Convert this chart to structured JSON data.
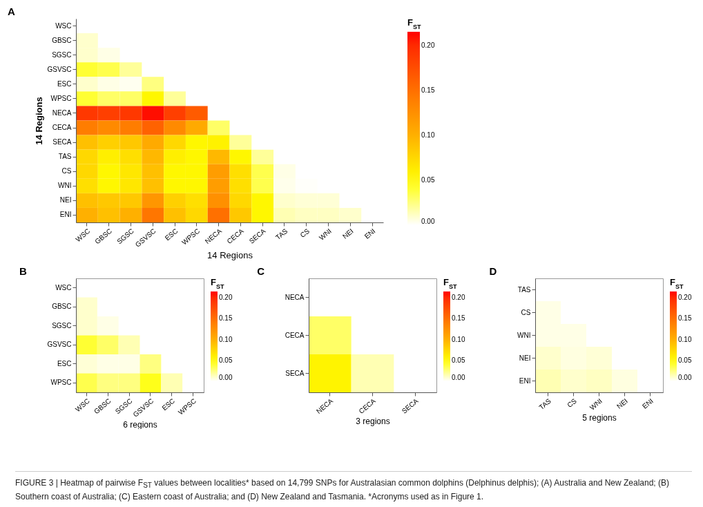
{
  "chart_data": [
    {
      "type": "heatmap",
      "title": "A",
      "xlabel": "14 Regions",
      "ylabel": "14 Regions",
      "clabel": "F$_{ST}$",
      "categories": [
        "WSC",
        "GBSC",
        "SGSC",
        "GSVSC",
        "ESC",
        "WPSC",
        "NECA",
        "CECA",
        "SECA",
        "TAS",
        "CS",
        "WNI",
        "NEI",
        "ENI"
      ],
      "y_categories": [
        "WSC",
        "GBSC",
        "SGSC",
        "GSVSC",
        "ESC",
        "WPSC",
        "NECA",
        "CECA",
        "SECA",
        "TAS",
        "CS",
        "WNI",
        "NEI",
        "ENI"
      ],
      "cells": [
        [
          null,
          null,
          null,
          null,
          null,
          null,
          null,
          null,
          null,
          null,
          null,
          null,
          null,
          null
        ],
        [
          0.01,
          null,
          null,
          null,
          null,
          null,
          null,
          null,
          null,
          null,
          null,
          null,
          null,
          null
        ],
        [
          0.01,
          0.005,
          null,
          null,
          null,
          null,
          null,
          null,
          null,
          null,
          null,
          null,
          null,
          null
        ],
        [
          0.04,
          0.035,
          0.02,
          null,
          null,
          null,
          null,
          null,
          null,
          null,
          null,
          null,
          null,
          null
        ],
        [
          0.01,
          0.005,
          0.003,
          0.025,
          null,
          null,
          null,
          null,
          null,
          null,
          null,
          null,
          null,
          null
        ],
        [
          0.04,
          0.03,
          0.03,
          0.055,
          0.02,
          null,
          null,
          null,
          null,
          null,
          null,
          null,
          null,
          null
        ],
        [
          0.19,
          0.185,
          0.19,
          0.21,
          0.185,
          0.165,
          null,
          null,
          null,
          null,
          null,
          null,
          null,
          null
        ],
        [
          0.14,
          0.13,
          0.14,
          0.16,
          0.13,
          0.105,
          0.03,
          null,
          null,
          null,
          null,
          null,
          null,
          null
        ],
        [
          0.09,
          0.08,
          0.085,
          0.105,
          0.075,
          0.055,
          0.058,
          0.02,
          null,
          null,
          null,
          null,
          null,
          null
        ],
        [
          0.075,
          0.06,
          0.07,
          0.095,
          0.06,
          0.055,
          0.095,
          0.055,
          0.02,
          null,
          null,
          null,
          null,
          null
        ],
        [
          0.075,
          0.055,
          0.065,
          0.09,
          0.055,
          0.055,
          0.115,
          0.07,
          0.035,
          0.005,
          null,
          null,
          null,
          null
        ],
        [
          0.07,
          0.055,
          0.065,
          0.09,
          0.055,
          0.055,
          0.115,
          0.07,
          0.035,
          0.004,
          0.001,
          null,
          null,
          null
        ],
        [
          0.09,
          0.085,
          0.085,
          0.12,
          0.08,
          0.07,
          0.125,
          0.075,
          0.055,
          0.01,
          0.008,
          0.008,
          null,
          null
        ],
        [
          0.1,
          0.09,
          0.1,
          0.145,
          0.09,
          0.075,
          0.15,
          0.085,
          0.055,
          0.015,
          0.012,
          0.012,
          0.01,
          null
        ]
      ],
      "clim": [
        0,
        0.215
      ],
      "cticks": [
        {
          "value": 0,
          "label": "0.00"
        },
        {
          "value": 0.05,
          "label": "0.05"
        },
        {
          "value": 0.1,
          "label": "0.10"
        },
        {
          "value": 0.15,
          "label": "0.15"
        },
        {
          "value": 0.2,
          "label": "0.20"
        }
      ],
      "annotations": [
        "FIGURE 3 | Heatmap of pairwise F$_{ST}$ values between localities* based on 14,799 SNPs for Australasian common dolphins (Delphinus delphis); (A) Australia and New Zealand; (B) Southern coast of Australia; (C) Eastern coast of Australia; and (D) New Zealand and Tasmania. *Acronyms used as in Figure 1."
      ]
    },
    {
      "type": "heatmap",
      "title": "B",
      "xlabel": "6 regions",
      "clabel": "F$_{ST}$",
      "categories": [
        "WSC",
        "GBSC",
        "SGSC",
        "GSVSC",
        "ESC",
        "WPSC"
      ],
      "y_categories": [
        "WSC",
        "GBSC",
        "SGSC",
        "GSVSC",
        "ESC",
        "WPSC"
      ],
      "cells": [
        [
          null,
          null,
          null,
          null,
          null,
          null
        ],
        [
          0.01,
          null,
          null,
          null,
          null,
          null
        ],
        [
          0.01,
          0.005,
          null,
          null,
          null,
          null
        ],
        [
          0.04,
          0.03,
          0.015,
          null,
          null,
          null
        ],
        [
          0.008,
          0.005,
          0.005,
          0.025,
          null,
          null
        ],
        [
          0.035,
          0.025,
          0.025,
          0.045,
          0.015,
          null
        ]
      ],
      "clim": [
        0,
        0.215
      ],
      "cticks": [
        {
          "value": 0,
          "label": "0.00"
        },
        {
          "value": 0.05,
          "label": "0.05"
        },
        {
          "value": 0.1,
          "label": "0.10"
        },
        {
          "value": 0.15,
          "label": "0.15"
        },
        {
          "value": 0.2,
          "label": "0.20"
        }
      ]
    },
    {
      "type": "heatmap",
      "title": "C",
      "xlabel": "3 regions",
      "clabel": "F$_{ST}$",
      "categories": [
        "NECA",
        "CECA",
        "SECA"
      ],
      "y_categories": [
        "NECA",
        "CECA",
        "SECA"
      ],
      "cells": [
        [
          null,
          null,
          null
        ],
        [
          0.03,
          null,
          null
        ],
        [
          0.057,
          0.015,
          null
        ]
      ],
      "clim": [
        0,
        0.215
      ],
      "cticks": [
        {
          "value": 0,
          "label": "0.00"
        },
        {
          "value": 0.05,
          "label": "0.05"
        },
        {
          "value": 0.1,
          "label": "0.10"
        },
        {
          "value": 0.15,
          "label": "0.15"
        },
        {
          "value": 0.2,
          "label": "0.20"
        }
      ]
    },
    {
      "type": "heatmap",
      "title": "D",
      "xlabel": "5 regions",
      "clabel": "F$_{ST}$",
      "categories": [
        "TAS",
        "CS",
        "WNI",
        "NEI",
        "ENI"
      ],
      "y_categories": [
        "TAS",
        "CS",
        "WNI",
        "NEI",
        "ENI"
      ],
      "cells": [
        [
          null,
          null,
          null,
          null,
          null
        ],
        [
          0.005,
          null,
          null,
          null,
          null
        ],
        [
          0.005,
          0.005,
          null,
          null,
          null
        ],
        [
          0.01,
          0.006,
          0.008,
          null,
          null
        ],
        [
          0.015,
          0.01,
          0.012,
          0.006,
          null
        ]
      ],
      "clim": [
        0,
        0.215
      ],
      "cticks": [
        {
          "value": 0,
          "label": "0.00"
        },
        {
          "value": 0.05,
          "label": "0.05"
        },
        {
          "value": 0.1,
          "label": "0.10"
        },
        {
          "value": 0.15,
          "label": "0.15"
        },
        {
          "value": 0.2,
          "label": "0.20"
        }
      ]
    }
  ]
}
